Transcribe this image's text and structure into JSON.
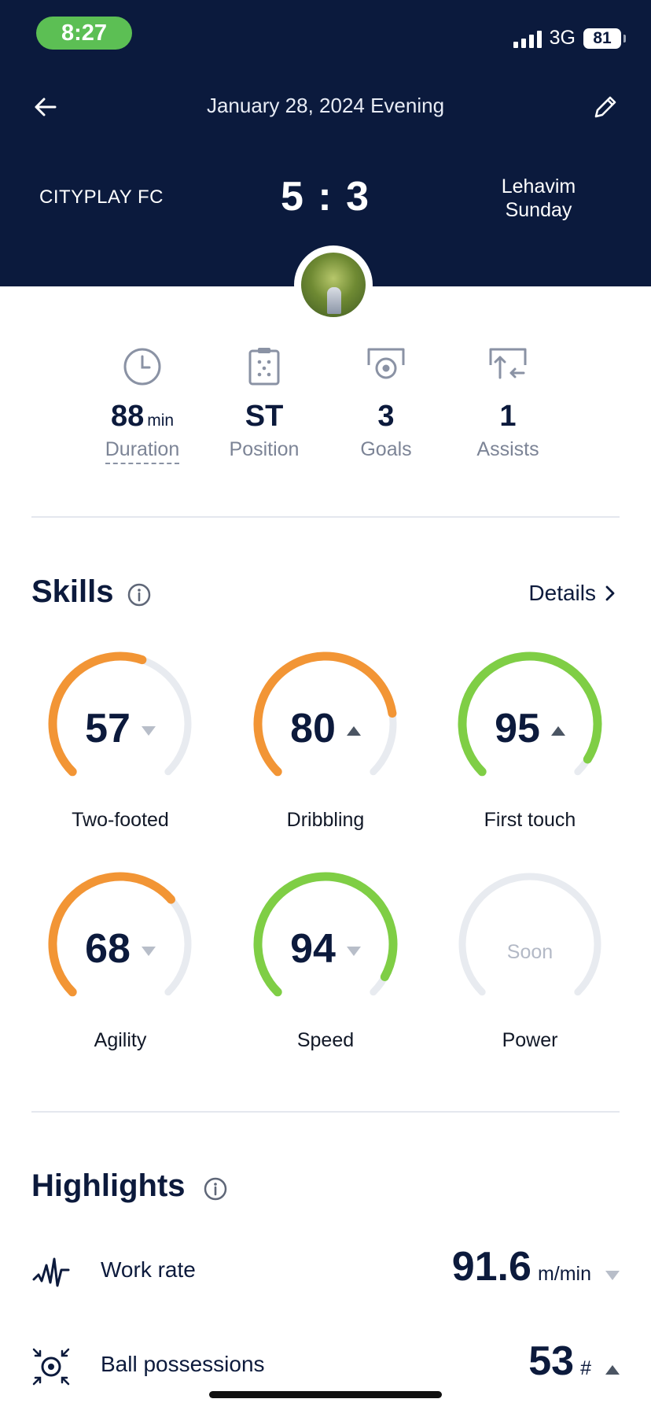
{
  "status_bar": {
    "time": "8:27",
    "network": "3G",
    "battery": "81"
  },
  "header": {
    "title": "January 28, 2024 Evening"
  },
  "match": {
    "home_team": "CITYPLAY FC",
    "score": "5 : 3",
    "away_team_line1": "Lehavim",
    "away_team_line2": "Sunday"
  },
  "stats": [
    {
      "value": "88",
      "unit": "min",
      "label": "Duration",
      "icon": "clock-icon"
    },
    {
      "value": "ST",
      "unit": "",
      "label": "Position",
      "icon": "clipboard-icon"
    },
    {
      "value": "3",
      "unit": "",
      "label": "Goals",
      "icon": "goal-icon"
    },
    {
      "value": "1",
      "unit": "",
      "label": "Assists",
      "icon": "assist-icon"
    }
  ],
  "skills": {
    "title": "Skills",
    "details_label": "Details",
    "items": [
      {
        "label": "Two-footed",
        "value": "57",
        "score": 57,
        "trend": "down",
        "color": "#f29535"
      },
      {
        "label": "Dribbling",
        "value": "80",
        "score": 80,
        "trend": "up",
        "color": "#f29535"
      },
      {
        "label": "First touch",
        "value": "95",
        "score": 95,
        "trend": "up",
        "color": "#7fce45"
      },
      {
        "label": "Agility",
        "value": "68",
        "score": 68,
        "trend": "down",
        "color": "#f29535"
      },
      {
        "label": "Speed",
        "value": "94",
        "score": 94,
        "trend": "down",
        "color": "#7fce45"
      },
      {
        "label": "Power",
        "value": "Soon",
        "score": 0,
        "trend": "none",
        "color": "#e8ebf0"
      }
    ]
  },
  "highlights": {
    "title": "Highlights",
    "items": [
      {
        "label": "Work rate",
        "value": "91.6",
        "unit": "m/min",
        "trend": "down",
        "icon": "work-rate-icon"
      },
      {
        "label": "Ball possessions",
        "value": "53",
        "unit": "#",
        "trend": "up",
        "icon": "ball-possession-icon"
      }
    ]
  },
  "colors": {
    "header_bg": "#0b1a3d",
    "orange": "#f29535",
    "green": "#7fce45",
    "track": "#e8ebf0"
  }
}
